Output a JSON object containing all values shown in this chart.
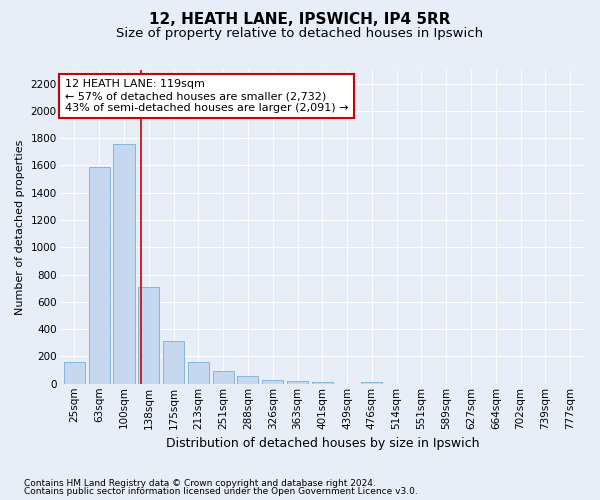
{
  "title1": "12, HEATH LANE, IPSWICH, IP4 5RR",
  "title2": "Size of property relative to detached houses in Ipswich",
  "xlabel": "Distribution of detached houses by size in Ipswich",
  "ylabel": "Number of detached properties",
  "categories": [
    "25sqm",
    "63sqm",
    "100sqm",
    "138sqm",
    "175sqm",
    "213sqm",
    "251sqm",
    "288sqm",
    "326sqm",
    "363sqm",
    "401sqm",
    "439sqm",
    "476sqm",
    "514sqm",
    "551sqm",
    "589sqm",
    "627sqm",
    "664sqm",
    "702sqm",
    "739sqm",
    "777sqm"
  ],
  "values": [
    160,
    1590,
    1760,
    710,
    315,
    160,
    90,
    55,
    30,
    20,
    10,
    0,
    15,
    0,
    0,
    0,
    0,
    0,
    0,
    0,
    0
  ],
  "bar_color": "#c5d8f0",
  "bar_edge_color": "#7aaed4",
  "marker_color": "#cc0000",
  "annotation_line1": "12 HEATH LANE: 119sqm",
  "annotation_line2": "← 57% of detached houses are smaller (2,732)",
  "annotation_line3": "43% of semi-detached houses are larger (2,091) →",
  "annotation_box_color": "#ffffff",
  "annotation_box_edge_color": "#cc0000",
  "ylim": [
    0,
    2300
  ],
  "yticks": [
    0,
    200,
    400,
    600,
    800,
    1000,
    1200,
    1400,
    1600,
    1800,
    2000,
    2200
  ],
  "footnote1": "Contains HM Land Registry data © Crown copyright and database right 2024.",
  "footnote2": "Contains public sector information licensed under the Open Government Licence v3.0.",
  "bg_color": "#e8eef8",
  "plot_bg_color": "#e8eef8",
  "grid_color": "#ffffff",
  "title1_fontsize": 11,
  "title2_fontsize": 9.5,
  "xlabel_fontsize": 9,
  "ylabel_fontsize": 8,
  "tick_fontsize": 7.5,
  "footnote_fontsize": 6.5,
  "annotation_fontsize": 8
}
